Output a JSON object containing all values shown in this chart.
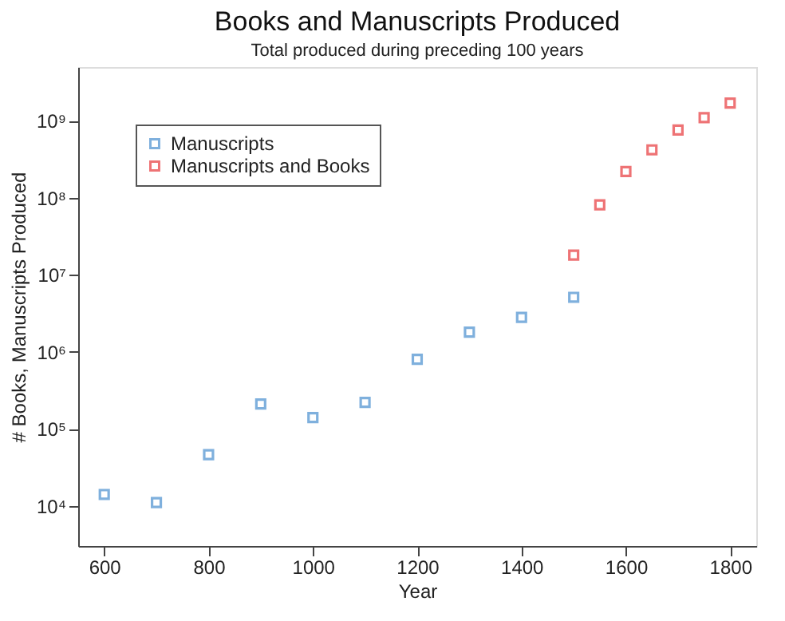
{
  "chart_data": {
    "type": "scatter",
    "title": "Books and Manuscripts Produced",
    "subtitle": "Total produced during preceding 100 years",
    "xlabel": "Year",
    "ylabel": "# Books, Manuscripts Produced",
    "log": "y",
    "marker": "square",
    "legend": "top left",
    "grid": false,
    "xlim": [
      550,
      1850
    ],
    "xticks": [
      600,
      800,
      1000,
      1200,
      1400,
      1600,
      1800
    ],
    "ylim": [
      3000,
      5000000000
    ],
    "yticks": [
      {
        "value": 10000,
        "label": "10⁴"
      },
      {
        "value": 100000,
        "label": "10⁵"
      },
      {
        "value": 1000000,
        "label": "10⁶"
      },
      {
        "value": 10000000,
        "label": "10⁷"
      },
      {
        "value": 100000000,
        "label": "10⁸"
      },
      {
        "value": 1000000000,
        "label": "10⁹"
      }
    ],
    "series": [
      {
        "name": "Manuscripts",
        "color": "#4a90d0",
        "x": [
          600,
          700,
          800,
          900,
          1000,
          1100,
          1200,
          1300,
          1400,
          1500
        ],
        "values": [
          14000,
          11000,
          46000,
          210000,
          140000,
          220000,
          800000,
          1800000,
          2800000,
          5100000
        ]
      },
      {
        "name": "Manuscripts and Books",
        "color": "#e8393c",
        "x": [
          1500,
          1550,
          1600,
          1650,
          1700,
          1750,
          1800
        ],
        "values": [
          18000000,
          81000000,
          220000000,
          420000000,
          760000000,
          1100000000,
          1700000000
        ]
      }
    ]
  }
}
